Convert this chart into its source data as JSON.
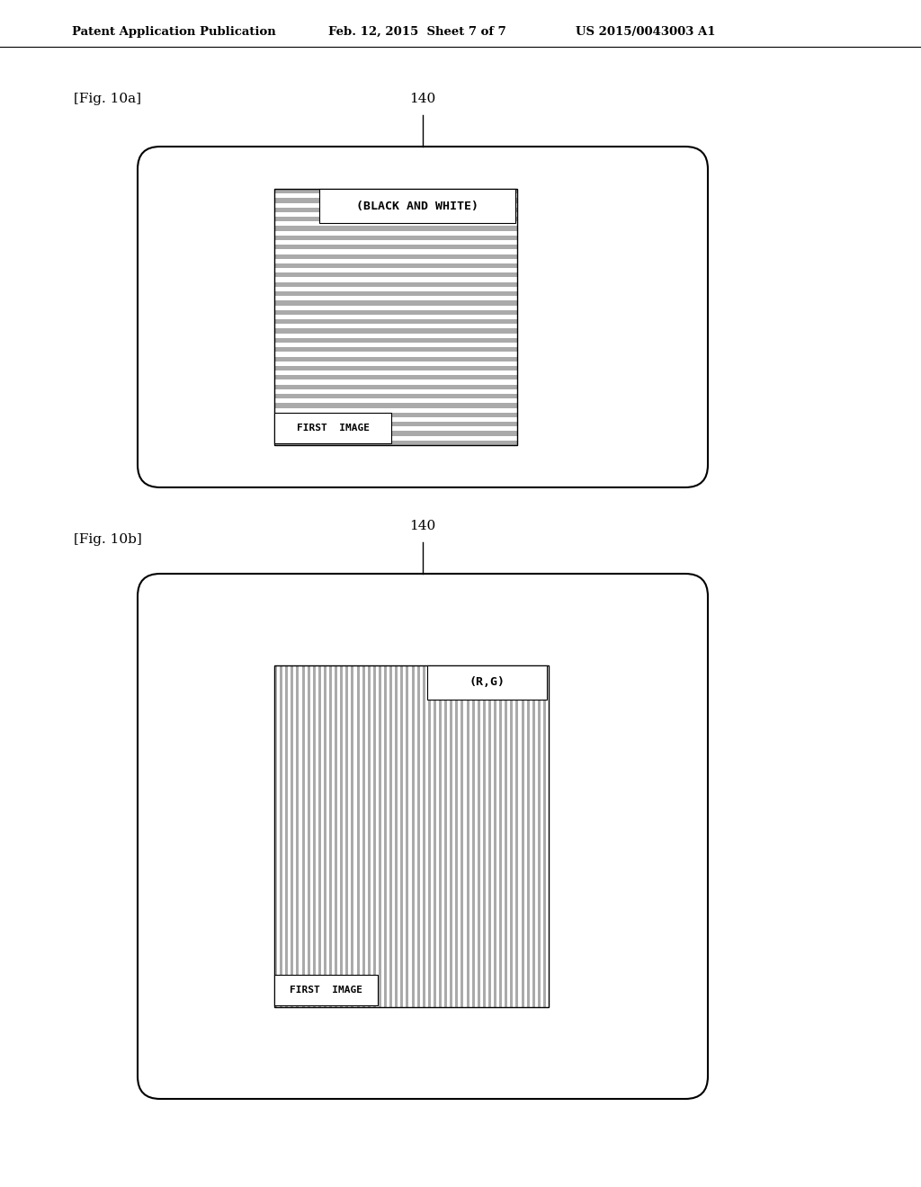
{
  "background_color": "#ffffff",
  "header_left": "Patent Application Publication",
  "header_mid": "Feb. 12, 2015  Sheet 7 of 7",
  "header_right": "US 2015/0043003 A1",
  "fig10a_label": "[Fig. 10a]",
  "fig10b_label": "[Fig. 10b]",
  "label_140": "140",
  "fig10a_inner_label_top": "(BLACK AND WHITE)",
  "fig10a_inner_label_bottom": "FIRST  IMAGE",
  "fig10b_inner_label_top": "(R,G)",
  "fig10b_inner_label_bottom": "FIRST  IMAGE",
  "line_color": "#000000",
  "stripe_color_dark": "#aaaaaa",
  "stripe_color_light": "#ffffff"
}
